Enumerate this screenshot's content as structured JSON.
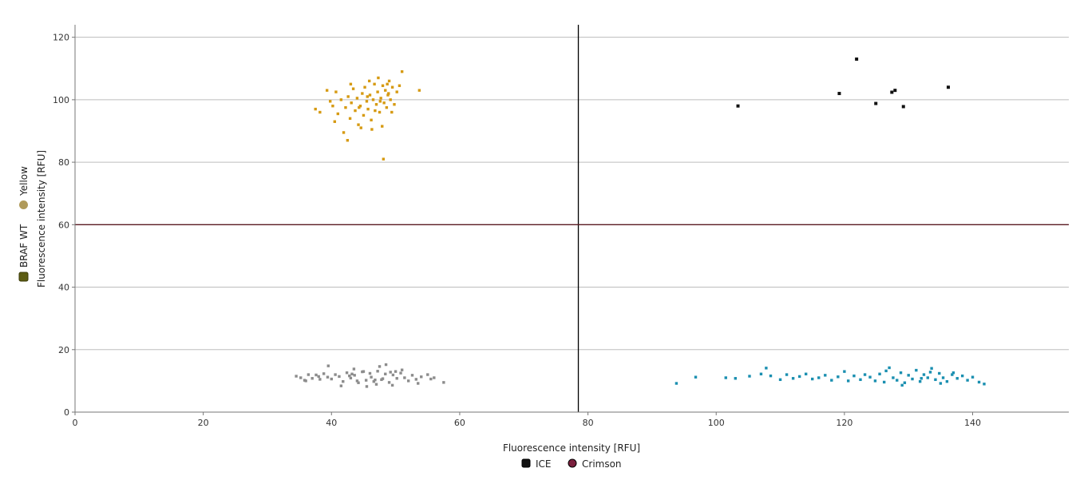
{
  "chart_data": {
    "type": "scatter",
    "xlabel": "Fluorescence intensity [RFU]",
    "ylabel": "Fluorescence intensity [RFU]",
    "xlim": [
      0,
      155
    ],
    "ylim": [
      0,
      124
    ],
    "x_ticks": [
      0,
      20,
      40,
      60,
      80,
      100,
      120,
      140
    ],
    "y_ticks": [
      0,
      20,
      40,
      60,
      80,
      100,
      120
    ],
    "grid": "horizontal",
    "thresholds": {
      "x": 78.5,
      "y": 60
    },
    "x_legend": {
      "placement": "bottom-center",
      "items": [
        {
          "label": "ICE",
          "color": "#111111",
          "shape": "square"
        },
        {
          "label": "Crimson",
          "color": "#7a1f3d",
          "shape": "circle"
        }
      ]
    },
    "y_legend": {
      "placement": "left-vertical",
      "items": [
        {
          "label": "BRAF WT",
          "color": "#5c5c12",
          "shape": "square"
        },
        {
          "label": "Yellow",
          "color": "#b09a5a",
          "shape": "circle"
        }
      ]
    },
    "series": [
      {
        "cluster": "negative",
        "color": "#8c8c8c",
        "points": [
          [
            34.5,
            11.5
          ],
          [
            35.2,
            11.0
          ],
          [
            35.8,
            10.2
          ],
          [
            36.4,
            12.0
          ],
          [
            37.0,
            10.8
          ],
          [
            37.6,
            11.9
          ],
          [
            38.2,
            10.5
          ],
          [
            38.8,
            12.3
          ],
          [
            39.4,
            11.2
          ],
          [
            40.0,
            10.6
          ],
          [
            40.6,
            12.0
          ],
          [
            41.2,
            11.4
          ],
          [
            41.8,
            9.8
          ],
          [
            42.4,
            12.6
          ],
          [
            43.0,
            10.9
          ],
          [
            43.6,
            11.8
          ],
          [
            44.2,
            9.4
          ],
          [
            44.8,
            12.9
          ],
          [
            45.4,
            10.2
          ],
          [
            46.0,
            12.4
          ],
          [
            46.6,
            9.8
          ],
          [
            47.2,
            13.1
          ],
          [
            47.8,
            10.4
          ],
          [
            48.4,
            12.2
          ],
          [
            49.0,
            9.5
          ],
          [
            49.6,
            11.9
          ],
          [
            50.2,
            10.8
          ],
          [
            50.8,
            12.5
          ],
          [
            51.4,
            11.0
          ],
          [
            52.0,
            10.0
          ],
          [
            52.6,
            11.8
          ],
          [
            53.2,
            10.5
          ],
          [
            54.0,
            11.3
          ],
          [
            55.0,
            12.0
          ],
          [
            56.0,
            11.0
          ],
          [
            57.5,
            9.5
          ],
          [
            39.5,
            14.8
          ],
          [
            41.5,
            8.4
          ],
          [
            43.5,
            13.8
          ],
          [
            45.5,
            8.2
          ],
          [
            47.5,
            14.6
          ],
          [
            48.5,
            15.2
          ],
          [
            49.5,
            8.6
          ],
          [
            51.0,
            13.5
          ],
          [
            53.5,
            9.2
          ],
          [
            44.0,
            10.0
          ],
          [
            46.2,
            11.2
          ],
          [
            48.0,
            10.7
          ],
          [
            42.8,
            11.6
          ],
          [
            45.0,
            13.0
          ],
          [
            47.0,
            8.9
          ],
          [
            50.0,
            13.0
          ],
          [
            38.0,
            11.4
          ],
          [
            36.0,
            10.0
          ],
          [
            55.5,
            10.6
          ],
          [
            46.8,
            10.3
          ],
          [
            43.2,
            12.2
          ],
          [
            49.2,
            12.8
          ]
        ]
      },
      {
        "cluster": "yellow-positive",
        "color": "#d69a12",
        "points": [
          [
            37.5,
            97.0
          ],
          [
            38.2,
            96.0
          ],
          [
            39.3,
            103.0
          ],
          [
            39.8,
            99.5
          ],
          [
            40.2,
            98.0
          ],
          [
            40.7,
            102.5
          ],
          [
            41.0,
            95.5
          ],
          [
            41.5,
            100.0
          ],
          [
            41.9,
            89.5
          ],
          [
            42.2,
            97.5
          ],
          [
            42.6,
            101.0
          ],
          [
            42.9,
            94.0
          ],
          [
            43.1,
            99.0
          ],
          [
            43.4,
            103.5
          ],
          [
            43.7,
            96.5
          ],
          [
            44.0,
            100.5
          ],
          [
            44.2,
            92.0
          ],
          [
            44.5,
            98.0
          ],
          [
            44.8,
            102.0
          ],
          [
            45.0,
            95.0
          ],
          [
            45.2,
            104.0
          ],
          [
            45.5,
            99.5
          ],
          [
            45.7,
            97.0
          ],
          [
            46.0,
            101.5
          ],
          [
            46.2,
            93.5
          ],
          [
            46.5,
            100.0
          ],
          [
            46.7,
            105.0
          ],
          [
            47.0,
            98.5
          ],
          [
            47.2,
            102.5
          ],
          [
            47.5,
            96.0
          ],
          [
            47.7,
            100.5
          ],
          [
            48.0,
            104.5
          ],
          [
            48.2,
            99.0
          ],
          [
            48.4,
            103.0
          ],
          [
            48.6,
            97.5
          ],
          [
            48.8,
            101.5
          ],
          [
            49.0,
            106.0
          ],
          [
            49.2,
            100.0
          ],
          [
            49.5,
            104.0
          ],
          [
            49.8,
            98.5
          ],
          [
            50.2,
            102.5
          ],
          [
            50.6,
            104.5
          ],
          [
            51.0,
            109.0
          ],
          [
            53.7,
            103.0
          ],
          [
            48.1,
            81.0
          ],
          [
            42.5,
            87.0
          ],
          [
            44.6,
            91.0
          ],
          [
            46.3,
            90.5
          ],
          [
            47.9,
            91.5
          ],
          [
            40.5,
            93.0
          ],
          [
            43.0,
            105.0
          ],
          [
            45.9,
            106.0
          ],
          [
            47.3,
            107.0
          ],
          [
            48.7,
            105.0
          ],
          [
            49.4,
            96.0
          ],
          [
            46.8,
            96.5
          ],
          [
            44.3,
            97.5
          ],
          [
            45.6,
            101.0
          ],
          [
            47.6,
            99.5
          ],
          [
            48.9,
            102.0
          ]
        ]
      },
      {
        "cluster": "ice-positive",
        "color": "#1a8fb0",
        "points": [
          [
            93.8,
            9.2
          ],
          [
            96.8,
            11.2
          ],
          [
            101.5,
            11.0
          ],
          [
            103.0,
            10.8
          ],
          [
            105.2,
            11.5
          ],
          [
            107.0,
            12.2
          ],
          [
            107.8,
            14.1
          ],
          [
            108.5,
            11.6
          ],
          [
            110.0,
            10.4
          ],
          [
            111.0,
            12.0
          ],
          [
            112.0,
            10.8
          ],
          [
            113.0,
            11.4
          ],
          [
            114.0,
            12.2
          ],
          [
            115.0,
            10.6
          ],
          [
            116.0,
            11.0
          ],
          [
            117.0,
            11.8
          ],
          [
            118.0,
            10.2
          ],
          [
            119.0,
            11.3
          ],
          [
            120.0,
            13.0
          ],
          [
            120.6,
            10.0
          ],
          [
            121.5,
            11.6
          ],
          [
            122.5,
            10.4
          ],
          [
            123.2,
            12.0
          ],
          [
            124.0,
            11.2
          ],
          [
            124.8,
            10.0
          ],
          [
            125.5,
            12.2
          ],
          [
            126.2,
            9.6
          ],
          [
            127.0,
            14.2
          ],
          [
            127.6,
            11.0
          ],
          [
            128.2,
            10.2
          ],
          [
            128.8,
            12.6
          ],
          [
            129.4,
            9.4
          ],
          [
            130.0,
            11.8
          ],
          [
            130.6,
            10.6
          ],
          [
            131.2,
            13.4
          ],
          [
            131.8,
            9.8
          ],
          [
            132.4,
            12.0
          ],
          [
            133.0,
            11.0
          ],
          [
            133.6,
            14.0
          ],
          [
            134.2,
            10.4
          ],
          [
            134.8,
            12.4
          ],
          [
            135.4,
            11.0
          ],
          [
            136.0,
            9.8
          ],
          [
            136.8,
            12.0
          ],
          [
            137.6,
            10.8
          ],
          [
            138.4,
            11.6
          ],
          [
            139.2,
            10.2
          ],
          [
            140.0,
            11.2
          ],
          [
            141.0,
            9.6
          ],
          [
            141.8,
            9.0
          ],
          [
            129.0,
            8.6
          ],
          [
            132.0,
            10.8
          ],
          [
            135.0,
            9.2
          ],
          [
            137.0,
            12.6
          ],
          [
            126.5,
            13.2
          ],
          [
            133.4,
            12.8
          ]
        ]
      },
      {
        "cluster": "double-positive",
        "color": "#111111",
        "points": [
          [
            103.4,
            98.0
          ],
          [
            119.2,
            102.0
          ],
          [
            121.9,
            113.0
          ],
          [
            124.9,
            98.8
          ],
          [
            127.4,
            102.4
          ],
          [
            127.9,
            103.0
          ],
          [
            129.2,
            97.8
          ],
          [
            136.2,
            104.0
          ]
        ]
      }
    ]
  }
}
